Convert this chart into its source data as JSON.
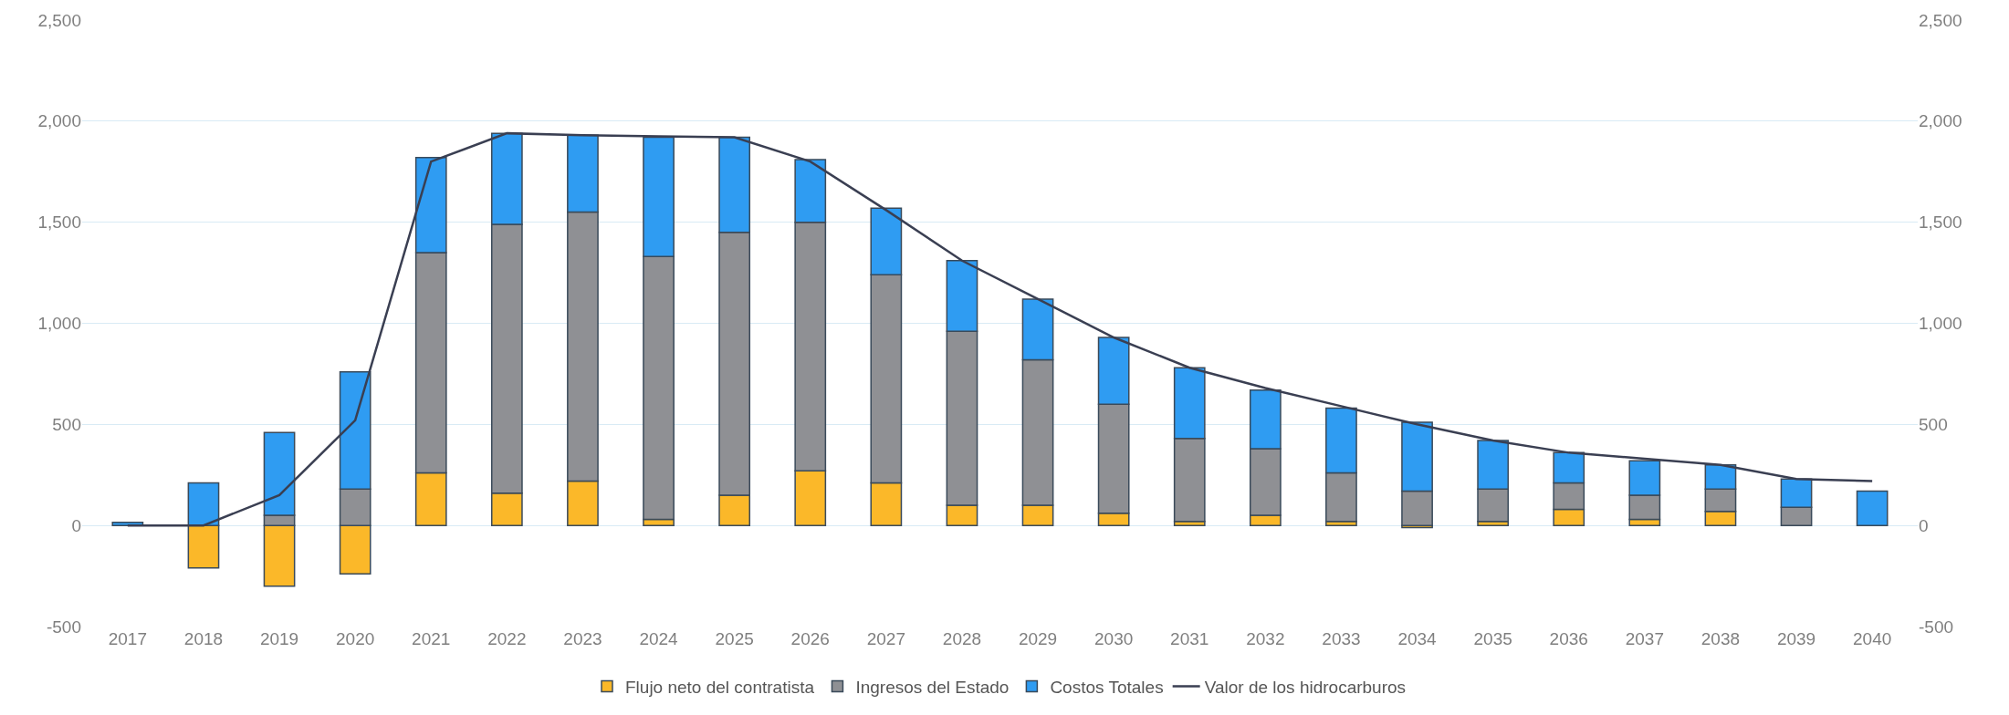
{
  "chart_data": {
    "type": "bar",
    "stacked": true,
    "categories": [
      "2017",
      "2018",
      "2019",
      "2020",
      "2021",
      "2022",
      "2023",
      "2024",
      "2025",
      "2026",
      "2027",
      "2028",
      "2029",
      "2030",
      "2031",
      "2032",
      "2033",
      "2034",
      "2035",
      "2036",
      "2037",
      "2038",
      "2039",
      "2040"
    ],
    "series": [
      {
        "name": "Flujo neto del contratista",
        "color": "#fbb829",
        "values": [
          null,
          -210,
          -300,
          -240,
          260,
          160,
          220,
          30,
          150,
          270,
          210,
          100,
          100,
          60,
          20,
          50,
          20,
          -10,
          20,
          80,
          30,
          70,
          null,
          null
        ]
      },
      {
        "name": "Ingresos del Estado",
        "color": "#8f9094",
        "values": [
          null,
          null,
          50,
          180,
          1090,
          1330,
          1330,
          1300,
          1300,
          1230,
          1030,
          860,
          720,
          540,
          410,
          330,
          240,
          170,
          160,
          130,
          120,
          110,
          90,
          null
        ]
      },
      {
        "name": "Costos Totales",
        "color": "#2f9cf2",
        "values": [
          15,
          210,
          410,
          580,
          470,
          450,
          380,
          590,
          470,
          310,
          330,
          350,
          300,
          330,
          350,
          290,
          320,
          340,
          240,
          150,
          170,
          120,
          140,
          170
        ]
      },
      {
        "name": "Valor de los hidrocarburos",
        "type": "line",
        "axis": "y2",
        "color": "#3a3f52",
        "marker": "none",
        "values": [
          0,
          0,
          150,
          520,
          1800,
          1940,
          1930,
          1925,
          1920,
          1800,
          1560,
          1310,
          1120,
          930,
          780,
          680,
          590,
          500,
          420,
          360,
          330,
          300,
          230,
          220
        ]
      }
    ],
    "ylim": [
      -500,
      2500
    ],
    "yticks": [
      -500,
      0,
      500,
      {
        "value": 1000,
        "label": "1,000"
      },
      {
        "value": 1500,
        "label": "1,500"
      },
      {
        "value": 2000,
        "label": "2,000"
      },
      {
        "value": 2500,
        "label": "2,500"
      }
    ],
    "y2lim": [
      -500,
      2500
    ],
    "y2ticks": [
      -500,
      0,
      500,
      {
        "value": 1000,
        "label": "1,000"
      },
      {
        "value": 1500,
        "label": "1,500"
      },
      {
        "value": 2000,
        "label": "2,000"
      },
      {
        "value": 2500,
        "label": "2,500"
      }
    ],
    "grid": "y",
    "legend": "bottom"
  }
}
